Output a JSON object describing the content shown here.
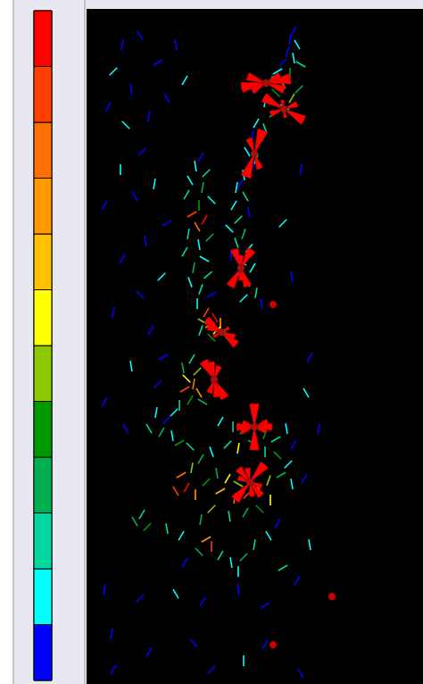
{
  "chart_data": {
    "type": "vector_field",
    "tick_labels": false,
    "xlim": [
      0,
      377
    ],
    "ylim": [
      0,
      756
    ],
    "colorbar": {
      "colors": [
        "#0000ff",
        "#00ffff",
        "#00d8a0",
        "#00b050",
        "#009a00",
        "#8cc800",
        "#ffff00",
        "#ffc000",
        "#ff9900",
        "#ff7000",
        "#ff4000",
        "#ff0000"
      ]
    },
    "segments": [
      [
        232,
        25,
        60,
        0
      ],
      [
        228,
        34,
        80,
        0
      ],
      [
        236,
        40,
        120,
        1
      ],
      [
        225,
        48,
        70,
        0
      ],
      [
        232,
        55,
        100,
        1
      ],
      [
        220,
        60,
        45,
        0
      ],
      [
        240,
        62,
        150,
        2
      ],
      [
        214,
        70,
        30,
        1
      ],
      [
        228,
        72,
        90,
        4
      ],
      [
        206,
        80,
        60,
        2
      ],
      [
        220,
        84,
        120,
        5
      ],
      [
        238,
        90,
        45,
        3
      ],
      [
        212,
        94,
        135,
        4
      ],
      [
        230,
        100,
        60,
        5
      ],
      [
        200,
        104,
        80,
        1
      ],
      [
        222,
        110,
        150,
        2
      ],
      [
        210,
        118,
        30,
        3
      ],
      [
        190,
        128,
        60,
        1
      ],
      [
        200,
        134,
        110,
        2
      ],
      [
        186,
        142,
        80,
        0
      ],
      [
        194,
        150,
        45,
        3
      ],
      [
        180,
        160,
        120,
        1
      ],
      [
        190,
        168,
        70,
        2
      ],
      [
        184,
        178,
        30,
        0
      ],
      [
        176,
        186,
        100,
        1
      ],
      [
        172,
        196,
        60,
        0
      ],
      [
        168,
        200,
        80,
        1
      ],
      [
        178,
        210,
        120,
        2
      ],
      [
        165,
        220,
        60,
        1
      ],
      [
        182,
        228,
        100,
        0
      ],
      [
        170,
        236,
        45,
        2
      ],
      [
        160,
        246,
        135,
        1
      ],
      [
        176,
        252,
        70,
        3
      ],
      [
        168,
        262,
        110,
        2
      ],
      [
        182,
        268,
        50,
        1
      ],
      [
        162,
        276,
        90,
        0
      ],
      [
        174,
        284,
        150,
        2
      ],
      [
        186,
        290,
        60,
        1
      ],
      [
        170,
        298,
        30,
        2
      ],
      [
        180,
        306,
        120,
        3
      ],
      [
        190,
        318,
        80,
        2
      ],
      [
        176,
        324,
        45,
        1
      ],
      [
        196,
        330,
        100,
        0
      ],
      [
        128,
        166,
        60,
        0
      ],
      [
        122,
        176,
        100,
        1
      ],
      [
        134,
        184,
        45,
        2
      ],
      [
        116,
        192,
        120,
        1
      ],
      [
        130,
        200,
        80,
        3
      ],
      [
        112,
        208,
        60,
        2
      ],
      [
        140,
        214,
        135,
        1
      ],
      [
        126,
        220,
        90,
        4
      ],
      [
        118,
        230,
        30,
        10
      ],
      [
        132,
        236,
        60,
        11
      ],
      [
        124,
        244,
        120,
        9
      ],
      [
        114,
        252,
        80,
        2
      ],
      [
        138,
        256,
        45,
        3
      ],
      [
        126,
        264,
        100,
        1
      ],
      [
        110,
        272,
        60,
        2
      ],
      [
        132,
        280,
        150,
        1
      ],
      [
        120,
        290,
        80,
        3
      ],
      [
        136,
        298,
        40,
        2
      ],
      [
        116,
        306,
        110,
        1
      ],
      [
        128,
        314,
        70,
        2
      ],
      [
        140,
        320,
        30,
        0
      ],
      [
        124,
        330,
        90,
        1
      ],
      [
        134,
        340,
        60,
        10
      ],
      [
        144,
        346,
        120,
        11
      ],
      [
        138,
        354,
        30,
        9
      ],
      [
        150,
        352,
        90,
        8
      ],
      [
        130,
        350,
        150,
        5
      ],
      [
        146,
        360,
        45,
        6
      ],
      [
        156,
        364,
        100,
        3
      ],
      [
        128,
        360,
        70,
        2
      ],
      [
        140,
        368,
        135,
        4
      ],
      [
        118,
        392,
        60,
        2
      ],
      [
        108,
        402,
        100,
        3
      ],
      [
        124,
        406,
        45,
        5
      ],
      [
        112,
        414,
        135,
        6
      ],
      [
        120,
        420,
        80,
        9
      ],
      [
        110,
        426,
        30,
        10
      ],
      [
        126,
        430,
        120,
        8
      ],
      [
        116,
        438,
        60,
        4
      ],
      [
        104,
        444,
        90,
        2
      ],
      [
        130,
        440,
        150,
        3
      ],
      [
        98,
        452,
        45,
        1
      ],
      [
        78,
        452,
        80,
        1
      ],
      [
        90,
        460,
        45,
        0
      ],
      [
        70,
        470,
        120,
        2
      ],
      [
        84,
        474,
        60,
        3
      ],
      [
        96,
        478,
        100,
        1
      ],
      [
        104,
        486,
        30,
        4
      ],
      [
        116,
        490,
        135,
        2
      ],
      [
        150,
        462,
        60,
        1
      ],
      [
        164,
        468,
        90,
        2
      ],
      [
        176,
        472,
        45,
        3
      ],
      [
        190,
        466,
        120,
        5
      ],
      [
        200,
        476,
        70,
        4
      ],
      [
        212,
        482,
        30,
        2
      ],
      [
        224,
        470,
        100,
        1
      ],
      [
        232,
        488,
        60,
        0
      ],
      [
        186,
        486,
        150,
        3
      ],
      [
        170,
        492,
        80,
        6
      ],
      [
        158,
        488,
        45,
        2
      ],
      [
        140,
        496,
        110,
        1
      ],
      [
        128,
        504,
        60,
        3
      ],
      [
        200,
        496,
        90,
        2
      ],
      [
        214,
        500,
        135,
        4
      ],
      [
        226,
        510,
        45,
        1
      ],
      [
        118,
        514,
        80,
        5
      ],
      [
        106,
        522,
        30,
        9
      ],
      [
        112,
        536,
        60,
        11
      ],
      [
        100,
        540,
        120,
        10
      ],
      [
        122,
        544,
        90,
        8
      ],
      [
        134,
        530,
        45,
        4
      ],
      [
        146,
        520,
        100,
        3
      ],
      [
        158,
        526,
        60,
        6
      ],
      [
        170,
        532,
        150,
        5
      ],
      [
        150,
        540,
        30,
        7
      ],
      [
        166,
        548,
        80,
        9
      ],
      [
        180,
        544,
        45,
        10
      ],
      [
        192,
        536,
        120,
        8
      ],
      [
        204,
        528,
        70,
        5
      ],
      [
        218,
        522,
        30,
        3
      ],
      [
        230,
        532,
        100,
        1
      ],
      [
        244,
        526,
        60,
        0
      ],
      [
        206,
        550,
        90,
        6
      ],
      [
        194,
        560,
        135,
        4
      ],
      [
        178,
        564,
        60,
        3
      ],
      [
        160,
        568,
        100,
        2
      ],
      [
        140,
        560,
        45,
        5
      ],
      [
        128,
        572,
        80,
        3
      ],
      [
        62,
        566,
        60,
        2
      ],
      [
        54,
        574,
        120,
        3
      ],
      [
        68,
        580,
        45,
        4
      ],
      [
        90,
        582,
        100,
        2
      ],
      [
        106,
        590,
        60,
        1
      ],
      [
        134,
        594,
        30,
        8
      ],
      [
        140,
        602,
        90,
        10
      ],
      [
        126,
        608,
        135,
        3
      ],
      [
        150,
        612,
        60,
        2
      ],
      [
        162,
        620,
        100,
        1
      ],
      [
        176,
        614,
        45,
        3
      ],
      [
        188,
        600,
        80,
        2
      ],
      [
        204,
        590,
        120,
        1
      ],
      [
        214,
        576,
        60,
        0
      ],
      [
        220,
        626,
        30,
        2
      ],
      [
        170,
        630,
        90,
        1
      ],
      [
        110,
        620,
        60,
        0
      ],
      [
        40,
        40,
        80,
        0
      ],
      [
        60,
        30,
        120,
        0
      ],
      [
        30,
        70,
        45,
        1
      ],
      [
        50,
        90,
        100,
        0
      ],
      [
        24,
        110,
        60,
        0
      ],
      [
        44,
        130,
        135,
        1
      ],
      [
        70,
        120,
        80,
        0
      ],
      [
        80,
        60,
        30,
        0
      ],
      [
        100,
        40,
        100,
        0
      ],
      [
        110,
        80,
        60,
        1
      ],
      [
        90,
        100,
        120,
        0
      ],
      [
        62,
        160,
        45,
        0
      ],
      [
        38,
        180,
        90,
        1
      ],
      [
        20,
        220,
        60,
        0
      ],
      [
        54,
        210,
        120,
        0
      ],
      [
        76,
        196,
        80,
        1
      ],
      [
        90,
        240,
        30,
        0
      ],
      [
        66,
        260,
        100,
        0
      ],
      [
        40,
        280,
        60,
        0
      ],
      [
        84,
        300,
        45,
        1
      ],
      [
        60,
        320,
        135,
        0
      ],
      [
        30,
        340,
        80,
        0
      ],
      [
        72,
        360,
        60,
        0
      ],
      [
        50,
        400,
        100,
        1
      ],
      [
        80,
        420,
        45,
        0
      ],
      [
        20,
        440,
        60,
        0
      ],
      [
        44,
        470,
        120,
        0
      ],
      [
        86,
        390,
        30,
        0
      ],
      [
        240,
        180,
        80,
        0
      ],
      [
        220,
        240,
        45,
        1
      ],
      [
        230,
        300,
        100,
        0
      ],
      [
        250,
        390,
        60,
        0
      ],
      [
        246,
        430,
        120,
        1
      ],
      [
        260,
        470,
        80,
        0
      ],
      [
        236,
        640,
        60,
        0
      ],
      [
        250,
        600,
        100,
        1
      ],
      [
        20,
        650,
        80,
        0
      ],
      [
        60,
        660,
        45,
        0
      ],
      [
        100,
        655,
        120,
        1
      ],
      [
        130,
        664,
        60,
        0
      ],
      [
        170,
        650,
        100,
        0
      ],
      [
        200,
        668,
        30,
        0
      ],
      [
        28,
        700,
        80,
        0
      ],
      [
        70,
        720,
        60,
        0
      ],
      [
        120,
        710,
        135,
        0
      ],
      [
        140,
        740,
        45,
        0
      ],
      [
        176,
        730,
        90,
        1
      ],
      [
        200,
        712,
        60,
        0
      ],
      [
        240,
        744,
        120,
        0
      ],
      [
        30,
        740,
        60,
        0
      ]
    ],
    "roses": {
      "color": "#ff0000",
      "items": [
        {
          "x": 201,
          "y": 83,
          "petals": [
            [
              10,
              28
            ],
            [
              30,
              18
            ],
            [
              160,
              22
            ]
          ]
        },
        {
          "x": 221,
          "y": 112,
          "petals": [
            [
              150,
              26
            ],
            [
              20,
              16
            ],
            [
              100,
              10
            ]
          ]
        },
        {
          "x": 188,
          "y": 162,
          "petals": [
            [
              70,
              28
            ],
            [
              110,
              18
            ]
          ]
        },
        {
          "x": 173,
          "y": 290,
          "petals": [
            [
              60,
              24
            ],
            [
              110,
              22
            ],
            [
              90,
              14
            ]
          ]
        },
        {
          "x": 151,
          "y": 362,
          "petals": [
            [
              140,
              22
            ],
            [
              160,
              16
            ],
            [
              30,
              10
            ]
          ]
        },
        {
          "x": 143,
          "y": 415,
          "petals": [
            [
              120,
              24
            ],
            [
              70,
              16
            ],
            [
              100,
              20
            ]
          ]
        },
        {
          "x": 188,
          "y": 468,
          "petals": [
            [
              90,
              26
            ],
            [
              20,
              16
            ],
            [
              160,
              14
            ],
            [
              0,
              20
            ]
          ]
        },
        {
          "x": 183,
          "y": 530,
          "petals": [
            [
              50,
              26
            ],
            [
              130,
              20
            ],
            [
              100,
              16
            ],
            [
              160,
              14
            ]
          ]
        }
      ]
    },
    "points": {
      "color": "#ff0000",
      "values": [
        [
          209,
          331
        ],
        [
          275,
          658
        ],
        [
          209,
          712
        ]
      ]
    }
  }
}
